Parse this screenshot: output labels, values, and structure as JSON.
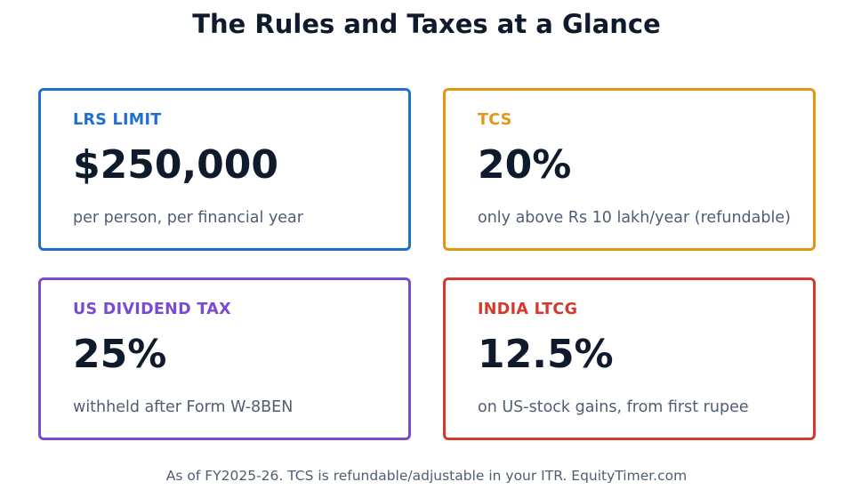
{
  "title": "The Rules and Taxes at a Glance",
  "cards": [
    {
      "label": "LRS LIMIT",
      "value": "$250,000",
      "description": "per person, per financial year",
      "accent_color": "#1f6fd1"
    },
    {
      "label": "TCS",
      "value": "20%",
      "description": "only above Rs 10 lakh/year (refundable)",
      "accent_color": "#e39612"
    },
    {
      "label": "US DIVIDEND TAX",
      "value": "25%",
      "description": "withheld after Form W-8BEN",
      "accent_color": "#7a4bd0"
    },
    {
      "label": "INDIA LTCG",
      "value": "12.5%",
      "description": "on US-stock gains, from first rupee",
      "accent_color": "#d33a2c"
    }
  ],
  "footer": "As of FY2025-26. TCS is refundable/adjustable in your ITR. EquityTimer.com"
}
